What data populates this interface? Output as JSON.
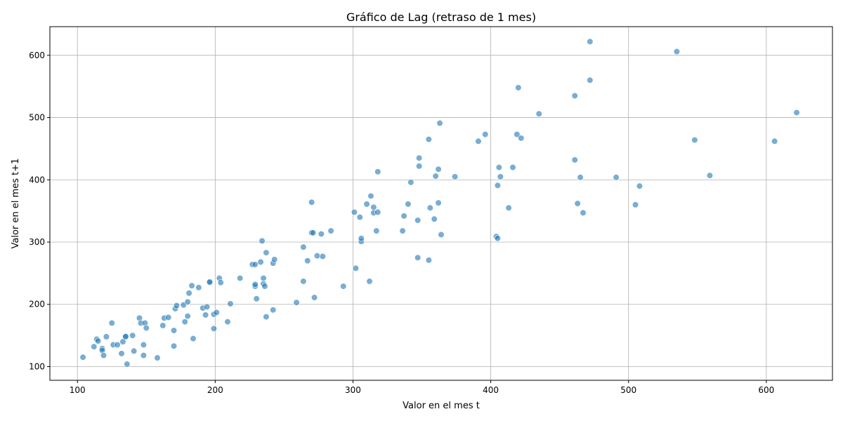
{
  "chart_data": {
    "type": "scatter",
    "title": "Gráfico de Lag (retraso de 1 mes)",
    "xlabel": "Valor en el mes t",
    "ylabel": "Valor en el mes t+1",
    "xlim": [
      80,
      648
    ],
    "ylim": [
      78,
      646
    ],
    "xticks": [
      100,
      200,
      300,
      400,
      500,
      600
    ],
    "yticks": [
      100,
      200,
      300,
      400,
      500,
      600
    ],
    "grid": true,
    "marker_color": "#1f77b4",
    "points": [
      [
        104,
        115
      ],
      [
        112,
        132
      ],
      [
        114,
        144
      ],
      [
        115,
        141
      ],
      [
        118,
        129
      ],
      [
        118,
        126
      ],
      [
        119,
        118
      ],
      [
        121,
        148
      ],
      [
        125,
        170
      ],
      [
        126,
        135
      ],
      [
        129,
        135
      ],
      [
        132,
        121
      ],
      [
        133,
        140
      ],
      [
        135,
        149
      ],
      [
        135,
        148
      ],
      [
        136,
        104
      ],
      [
        140,
        150
      ],
      [
        141,
        125
      ],
      [
        145,
        178
      ],
      [
        146,
        170
      ],
      [
        148,
        135
      ],
      [
        148,
        118
      ],
      [
        149,
        170
      ],
      [
        150,
        162
      ],
      [
        158,
        114
      ],
      [
        162,
        166
      ],
      [
        163,
        178
      ],
      [
        166,
        179
      ],
      [
        170,
        158
      ],
      [
        170,
        133
      ],
      [
        171,
        193
      ],
      [
        172,
        198
      ],
      [
        177,
        199
      ],
      [
        178,
        172
      ],
      [
        180,
        204
      ],
      [
        180,
        181
      ],
      [
        181,
        218
      ],
      [
        183,
        230
      ],
      [
        184,
        145
      ],
      [
        188,
        227
      ],
      [
        191,
        194
      ],
      [
        193,
        183
      ],
      [
        194,
        196
      ],
      [
        196,
        235
      ],
      [
        196,
        236
      ],
      [
        199,
        161
      ],
      [
        199,
        184
      ],
      [
        201,
        187
      ],
      [
        203,
        242
      ],
      [
        204,
        235
      ],
      [
        209,
        172
      ],
      [
        211,
        201
      ],
      [
        218,
        242
      ],
      [
        227,
        264
      ],
      [
        229,
        229
      ],
      [
        229,
        232
      ],
      [
        229,
        264
      ],
      [
        230,
        209
      ],
      [
        233,
        268
      ],
      [
        234,
        302
      ],
      [
        235,
        233
      ],
      [
        235,
        242
      ],
      [
        236,
        229
      ],
      [
        237,
        180
      ],
      [
        237,
        283
      ],
      [
        242,
        266
      ],
      [
        242,
        191
      ],
      [
        243,
        272
      ],
      [
        259,
        203
      ],
      [
        264,
        292
      ],
      [
        264,
        237
      ],
      [
        267,
        270
      ],
      [
        270,
        315
      ],
      [
        270,
        364
      ],
      [
        271,
        315
      ],
      [
        272,
        211
      ],
      [
        274,
        278
      ],
      [
        277,
        313
      ],
      [
        278,
        277
      ],
      [
        284,
        318
      ],
      [
        293,
        229
      ],
      [
        301,
        348
      ],
      [
        302,
        258
      ],
      [
        305,
        340
      ],
      [
        306,
        301
      ],
      [
        306,
        306
      ],
      [
        310,
        361
      ],
      [
        312,
        237
      ],
      [
        313,
        374
      ],
      [
        315,
        356
      ],
      [
        315,
        347
      ],
      [
        317,
        318
      ],
      [
        318,
        413
      ],
      [
        318,
        348
      ],
      [
        336,
        318
      ],
      [
        337,
        342
      ],
      [
        340,
        361
      ],
      [
        342,
        396
      ],
      [
        347,
        275
      ],
      [
        347,
        335
      ],
      [
        348,
        435
      ],
      [
        348,
        422
      ],
      [
        355,
        271
      ],
      [
        355,
        465
      ],
      [
        356,
        355
      ],
      [
        359,
        337
      ],
      [
        360,
        406
      ],
      [
        362,
        363
      ],
      [
        362,
        417
      ],
      [
        363,
        491
      ],
      [
        364,
        312
      ],
      [
        374,
        405
      ],
      [
        391,
        462
      ],
      [
        396,
        473
      ],
      [
        404,
        309
      ],
      [
        405,
        306
      ],
      [
        405,
        391
      ],
      [
        406,
        420
      ],
      [
        407,
        405
      ],
      [
        413,
        355
      ],
      [
        416,
        420
      ],
      [
        419,
        473
      ],
      [
        420,
        548
      ],
      [
        422,
        467
      ],
      [
        435,
        506
      ],
      [
        461,
        535
      ],
      [
        461,
        432
      ],
      [
        463,
        362
      ],
      [
        465,
        404
      ],
      [
        467,
        347
      ],
      [
        472,
        622
      ],
      [
        472,
        560
      ],
      [
        491,
        404
      ],
      [
        505,
        360
      ],
      [
        508,
        390
      ],
      [
        535,
        606
      ],
      [
        548,
        464
      ],
      [
        559,
        407
      ],
      [
        606,
        462
      ],
      [
        622,
        508
      ]
    ]
  }
}
